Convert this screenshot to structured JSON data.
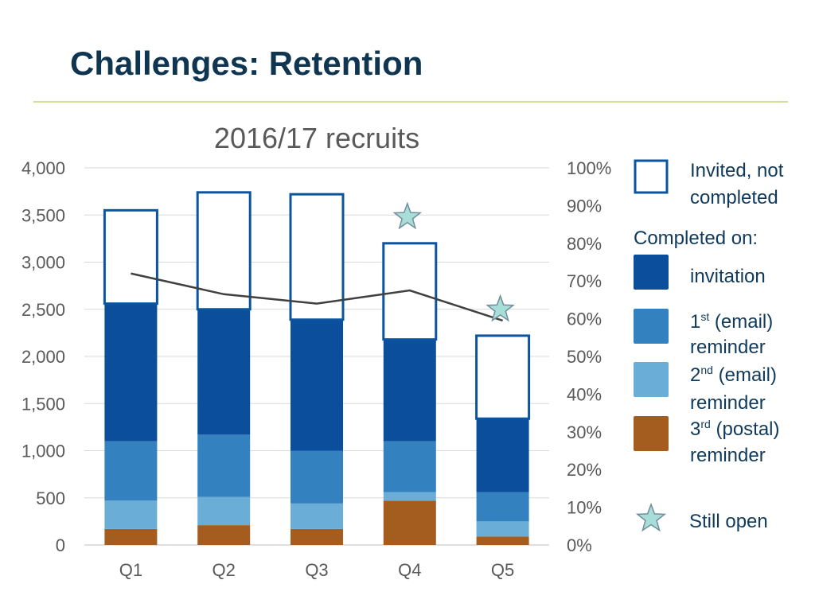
{
  "slide": {
    "title": "Challenges: Retention"
  },
  "colors": {
    "title": "#0f3550",
    "rule": "#d2dd9a",
    "invited_outline": "#0b55a0",
    "invitation": "#0b4f9c",
    "reminder1": "#3381bf",
    "reminder2": "#6aaed8",
    "reminder3": "#a45d1e",
    "line": "#404040",
    "star_fill": "#a9ddd8",
    "star_stroke": "#6f8f9b"
  },
  "chart_data": {
    "type": "bar",
    "stacked": true,
    "title": "2016/17 recruits",
    "categories": [
      "Q1",
      "Q2",
      "Q3",
      "Q4",
      "Q5"
    ],
    "ylim": [
      0,
      4000
    ],
    "yticks": [
      "0",
      "500",
      "1,000",
      "1,500",
      "2,000",
      "2,500",
      "3,000",
      "3,500",
      "4,000"
    ],
    "y2lim": [
      0,
      100
    ],
    "y2ticks": [
      "0%",
      "10%",
      "20%",
      "30%",
      "40%",
      "50%",
      "60%",
      "70%",
      "80%",
      "90%",
      "100%"
    ],
    "grid": true,
    "legend_position": "right",
    "series": [
      {
        "key": "reminder3",
        "values": [
          170,
          210,
          170,
          470,
          90
        ]
      },
      {
        "key": "reminder2",
        "values": [
          300,
          300,
          270,
          90,
          160
        ]
      },
      {
        "key": "reminder1",
        "values": [
          630,
          660,
          560,
          540,
          310
        ]
      },
      {
        "key": "invitation",
        "values": [
          1460,
          1330,
          1390,
          1080,
          780
        ]
      },
      {
        "key": "invited_not_completed",
        "values": [
          990,
          1240,
          1330,
          1020,
          880
        ]
      }
    ],
    "completion_rate_pct": [
      72,
      66.5,
      64,
      67.5,
      59.5
    ],
    "still_open": [
      "Q4",
      "Q5"
    ],
    "legend": {
      "invited": {
        "line1": "Invited, not",
        "line2": "completed"
      },
      "completed_on": "Completed on:",
      "invitation": "invitation",
      "reminder1": {
        "num": "1",
        "sup": "st",
        "rest": " (email)",
        "line2": "reminder"
      },
      "reminder2": {
        "num": "2",
        "sup": "nd",
        "rest": " (email)",
        "line2": "reminder"
      },
      "reminder3": {
        "num": "3",
        "sup": "rd",
        "rest": " (postal)",
        "line2": "reminder"
      },
      "still_open": "Still open"
    }
  }
}
